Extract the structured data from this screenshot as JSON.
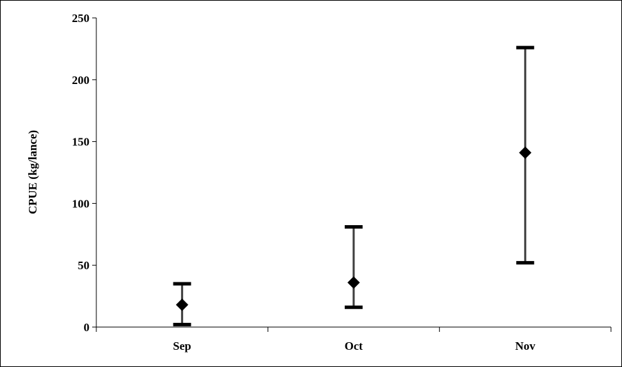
{
  "chart_data": {
    "type": "scatter",
    "title": "",
    "xlabel": "",
    "ylabel": "CPUE (kg/lance)",
    "ylim": [
      0,
      250
    ],
    "yticks": [
      0,
      50,
      100,
      150,
      200,
      250
    ],
    "ytick_labels": [
      "0",
      "50",
      "100",
      "150",
      "200",
      "250"
    ],
    "categories": [
      "Sep",
      "Oct",
      "Nov"
    ],
    "series": [
      {
        "values": [
          18,
          36,
          141
        ],
        "error_low": [
          2,
          16,
          52
        ],
        "error_high": [
          35,
          81,
          226
        ]
      }
    ],
    "grid": false,
    "legend": "none",
    "colors": {
      "marker": "#000000",
      "error_bar": "#404040",
      "axis": "#000000"
    }
  }
}
